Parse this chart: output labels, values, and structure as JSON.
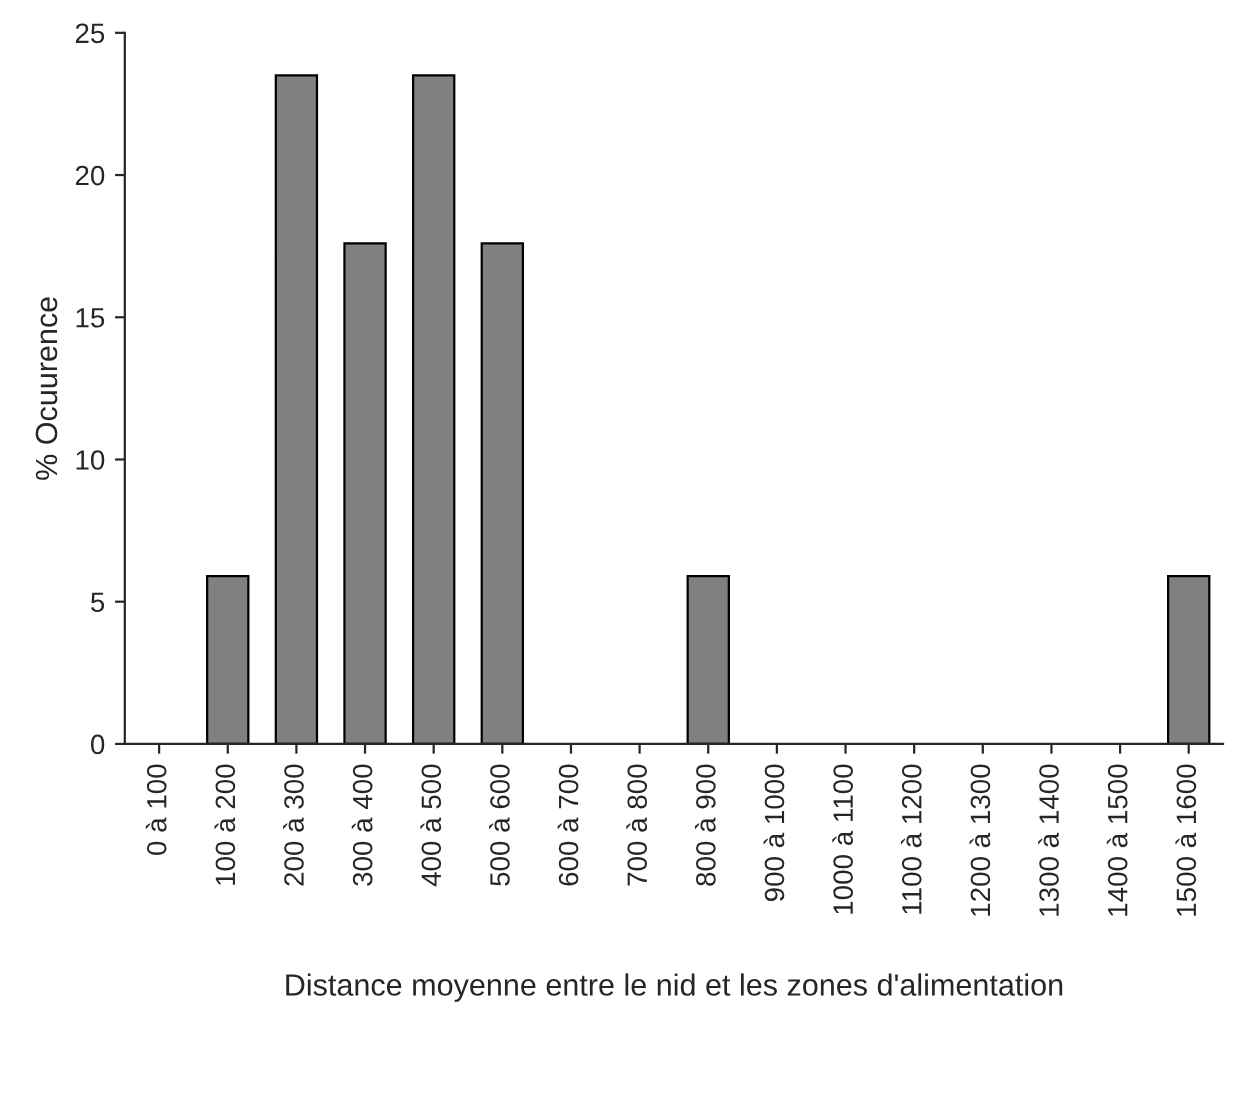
{
  "chart_data": {
    "type": "bar",
    "xlabel": "Distance moyenne entre le nid et les zones d'alimentation",
    "ylabel": "% Ocuurence",
    "categories": [
      "0 à 100",
      "100 à 200",
      "200 à 300",
      "300 à 400",
      "400 à 500",
      "500 à 600",
      "600 à 700",
      "700 à 800",
      "800 à 900",
      "900 à 1000",
      "1000 à 1100",
      "1100 à 1200",
      "1200 à 1300",
      "1300 à 1400",
      "1400 à 1500",
      "1500 à 1600"
    ],
    "values": [
      0,
      5.9,
      23.5,
      17.6,
      23.5,
      17.6,
      0,
      0,
      5.9,
      0,
      0,
      0,
      0,
      0,
      0,
      5.9
    ],
    "color": "#808080",
    "ylim": [
      0,
      25
    ],
    "yticks": [
      0,
      5,
      10,
      15,
      20,
      25
    ],
    "grid": false,
    "legend": false
  }
}
